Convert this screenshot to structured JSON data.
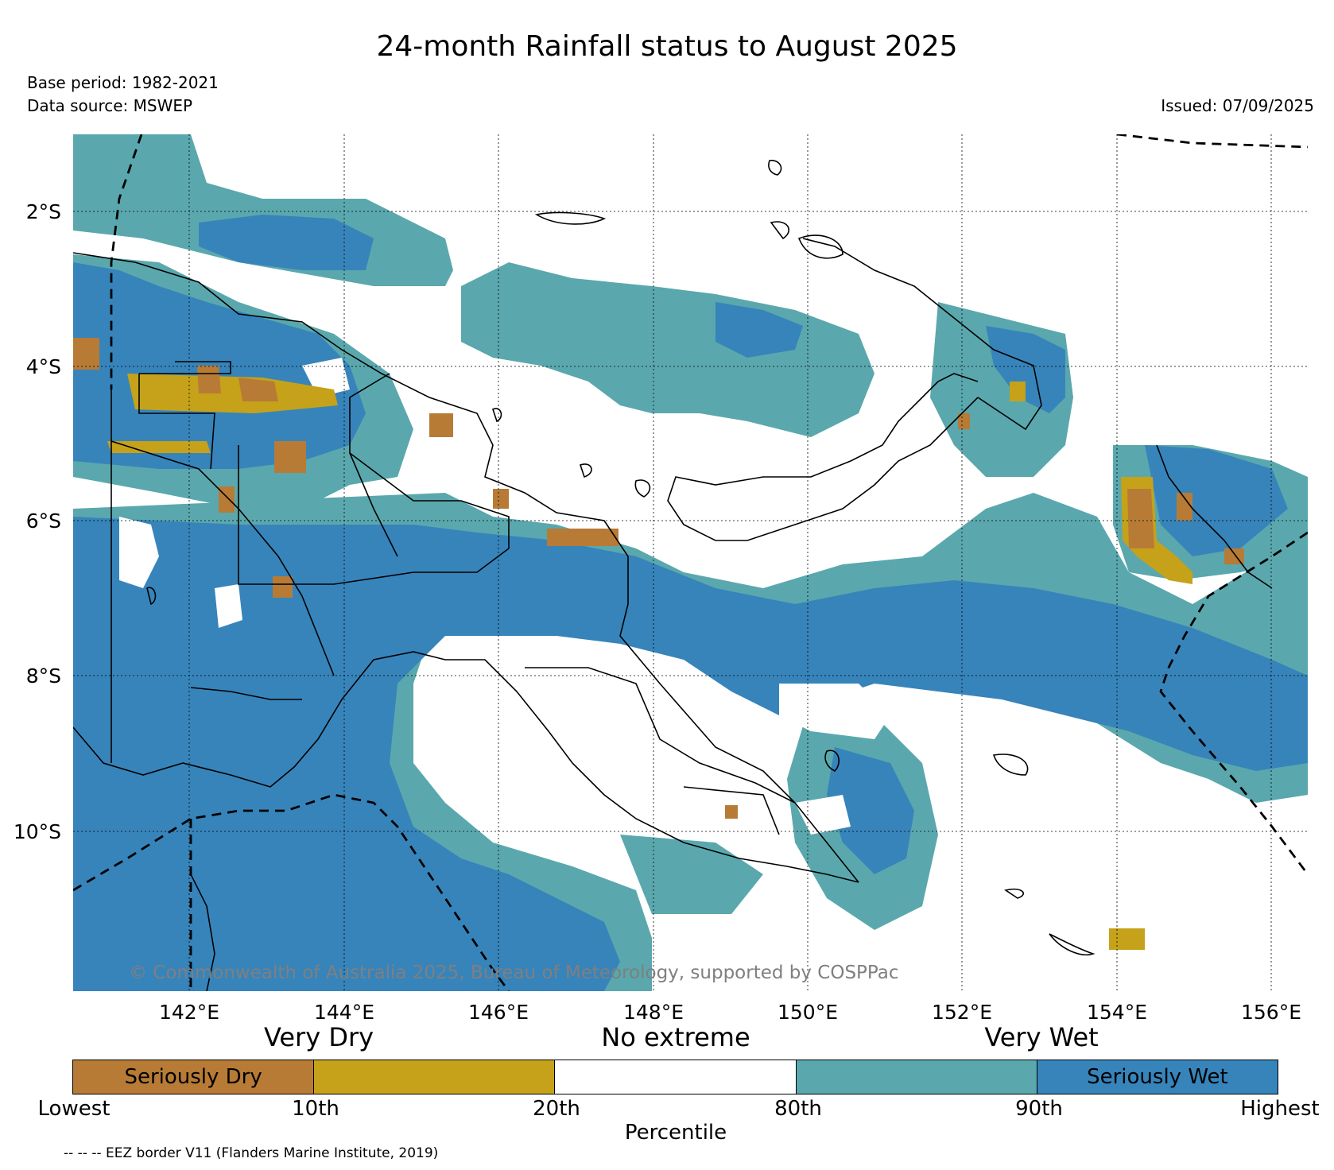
{
  "title": "24-month Rainfall status to August 2025",
  "base_period": "Base period: 1982-2021",
  "data_source": "Data source: MSWEP",
  "issued": "Issued: 07/09/2025",
  "copyright": "© Commonwealth of Australia 2025, Bureau of Meteorology, supported by COSPPac",
  "map": {
    "lat_labels": [
      "2°S",
      "4°S",
      "6°S",
      "8°S",
      "10°S"
    ],
    "lon_labels": [
      "142°E",
      "144°E",
      "146°E",
      "148°E",
      "150°E",
      "152°E",
      "154°E",
      "156°E"
    ]
  },
  "legend": {
    "headers": [
      "Very Dry",
      "No extreme",
      "Very Wet"
    ],
    "segments": [
      {
        "label": "Seriously Dry",
        "color": "#b77b36"
      },
      {
        "label": "",
        "color": "#c5a219"
      },
      {
        "label": "",
        "color": "#ffffff"
      },
      {
        "label": "",
        "color": "#5aa8ad"
      },
      {
        "label": "Seriously Wet",
        "color": "#3784bb"
      }
    ],
    "ticks": [
      "Lowest",
      "10th",
      "20th",
      "80th",
      "90th",
      "Highest"
    ],
    "axis_label": "Percentile"
  },
  "eez_note": "-- -- -- EEZ border V11 (Flanders Marine Institute, 2019)"
}
